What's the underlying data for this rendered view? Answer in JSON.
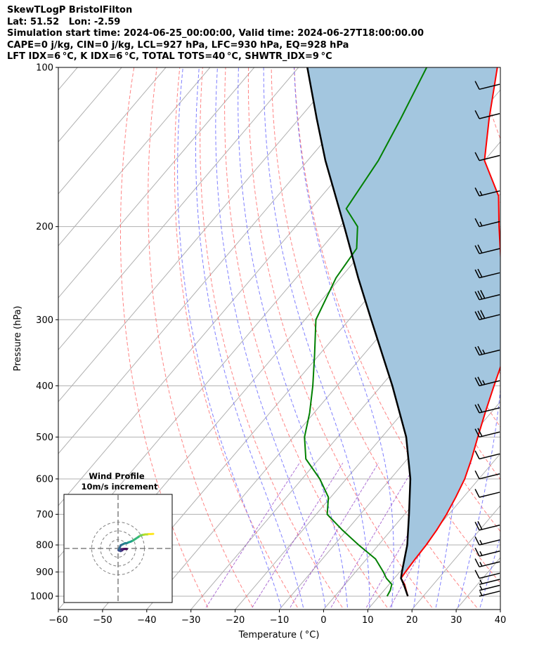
{
  "header": {
    "lines": [
      "SkewTLogP BristolFilton",
      "Lat: 51.52   Lon: -2.59",
      "Simulation start time: 2024-06-25_00:00:00, Valid time: 2024-06-27T18:00:00.00",
      "CAPE=0 j/kg, CIN=0 j/kg, LCL=927 hPa, LFC=930 hPa, EQ=928 hPa",
      "LFT IDX=6 °C, K IDX=6 °C, TOTAL TOTS=40 °C, SHWTR_IDX=9 °C"
    ]
  },
  "chart_data": {
    "type": "skewt",
    "xlabel": "Temperature ( °C)",
    "ylabel": "Pressure (hPa)",
    "xlim": [
      -60,
      40
    ],
    "ylim": [
      1040,
      100
    ],
    "y_log_scale": true,
    "x_ticks": [
      -60,
      -50,
      -40,
      -30,
      -20,
      -10,
      0,
      10,
      20,
      30,
      40
    ],
    "x_tick_labels": [
      "−60",
      "−50",
      "−40",
      "−30",
      "−20",
      "−10",
      "0",
      "10",
      "20",
      "30",
      "40"
    ],
    "y_ticks": [
      1000,
      900,
      800,
      700,
      600,
      500,
      400,
      300,
      200,
      100
    ],
    "y_tick_labels": [
      "1000",
      "900",
      "800",
      "700",
      "600",
      "500",
      "400",
      "300",
      "200",
      "100"
    ],
    "grid": true,
    "colors": {
      "temperature": "#ff0000",
      "dewpoint": "#008000",
      "parcel": "#000000",
      "cape_fill": "#a3c6df",
      "dry_adiabats": "#ff6f6f",
      "moist_adiabats": "#6a6aff",
      "mixing_ratio": "#9a4fc9",
      "isotherms": "#b0b0b0"
    },
    "series": [
      {
        "points": [
          [
            1000,
            16.5
          ],
          [
            950,
            13.5
          ],
          [
            925,
            11.5
          ],
          [
            900,
            11.3
          ],
          [
            850,
            11.0
          ],
          [
            800,
            10.8
          ],
          [
            750,
            10.3
          ],
          [
            700,
            9.5
          ],
          [
            650,
            8.3
          ],
          [
            600,
            6.8
          ],
          [
            550,
            4.5
          ],
          [
            500,
            1.7
          ],
          [
            450,
            -1.3
          ],
          [
            400,
            -4.5
          ],
          [
            350,
            -8.0
          ],
          [
            300,
            -14.0
          ],
          [
            250,
            -23.5
          ],
          [
            200,
            -34.0
          ],
          [
            175,
            -40.0
          ],
          [
            150,
            -50.0
          ],
          [
            125,
            -57.0
          ],
          [
            100,
            -65.0
          ]
        ]
      },
      {
        "points": [
          [
            1000,
            11.8
          ],
          [
            975,
            11.4
          ],
          [
            950,
            10.6
          ],
          [
            925,
            8.2
          ],
          [
            900,
            6.3
          ],
          [
            850,
            2.0
          ],
          [
            800,
            -4.5
          ],
          [
            750,
            -11.0
          ],
          [
            700,
            -17.5
          ],
          [
            650,
            -20.5
          ],
          [
            600,
            -26.0
          ],
          [
            550,
            -33.0
          ],
          [
            500,
            -37.5
          ],
          [
            450,
            -41.0
          ],
          [
            400,
            -45.5
          ],
          [
            350,
            -51.0
          ],
          [
            300,
            -57.5
          ],
          [
            250,
            -61.0
          ],
          [
            220,
            -62.0
          ],
          [
            200,
            -66.0
          ],
          [
            185,
            -72.0
          ],
          [
            150,
            -74.0
          ],
          [
            125,
            -77.0
          ],
          [
            100,
            -81.0
          ]
        ]
      },
      {
        "points": [
          [
            1000,
            16.5
          ],
          [
            950,
            13.3
          ],
          [
            925,
            11.5
          ],
          [
            900,
            10.5
          ],
          [
            800,
            6.5
          ],
          [
            700,
            1.0
          ],
          [
            600,
            -5.5
          ],
          [
            500,
            -14.5
          ],
          [
            400,
            -27.5
          ],
          [
            300,
            -45.0
          ],
          [
            250,
            -56.0
          ],
          [
            200,
            -69.0
          ],
          [
            150,
            -86.0
          ],
          [
            125,
            -96.0
          ],
          [
            100,
            -108.0
          ]
        ]
      }
    ],
    "wind_barbs": [
      {
        "p": 1000,
        "knots": 5
      },
      {
        "p": 975,
        "knots": 5
      },
      {
        "p": 950,
        "knots": 5
      },
      {
        "p": 925,
        "knots": 10
      },
      {
        "p": 880,
        "knots": 15
      },
      {
        "p": 840,
        "knots": 15
      },
      {
        "p": 800,
        "knots": 15
      },
      {
        "p": 750,
        "knots": 20
      },
      {
        "p": 650,
        "knots": 10
      },
      {
        "p": 600,
        "knots": 10
      },
      {
        "p": 550,
        "knots": 10
      },
      {
        "p": 500,
        "knots": 20
      },
      {
        "p": 450,
        "knots": 20
      },
      {
        "p": 400,
        "knots": 25
      },
      {
        "p": 350,
        "knots": 25
      },
      {
        "p": 300,
        "knots": 30
      },
      {
        "p": 275,
        "knots": 30
      },
      {
        "p": 250,
        "knots": 20
      },
      {
        "p": 225,
        "knots": 20
      },
      {
        "p": 200,
        "knots": 15
      },
      {
        "p": 175,
        "knots": 15
      },
      {
        "p": 150,
        "knots": 10
      },
      {
        "p": 125,
        "knots": 10
      },
      {
        "p": 110,
        "knots": 10
      }
    ],
    "hodograph": {
      "title": "Wind Profile",
      "subtitle": "10m/s increment",
      "ring_spacing_ms": 10,
      "points_uv": [
        [
          5.0,
          -0.3
        ],
        [
          4.0,
          -0.3
        ],
        [
          2.0,
          -0.4
        ],
        [
          1.0,
          -0.6
        ],
        [
          2.5,
          -1.0
        ],
        [
          1.5,
          -1.5
        ],
        [
          0.5,
          -1.2
        ],
        [
          0.2,
          -0.9
        ],
        [
          0.5,
          -0.5
        ],
        [
          1.5,
          1.8
        ],
        [
          3.0,
          2.5
        ],
        [
          4.0,
          3.0
        ],
        [
          5.0,
          3.0
        ],
        [
          6.0,
          3.5
        ],
        [
          7.0,
          3.8
        ],
        [
          8.5,
          4.5
        ],
        [
          10.0,
          5.5
        ],
        [
          11.5,
          6.5
        ],
        [
          12.5,
          7.2
        ],
        [
          13.5,
          7.6
        ],
        [
          14.5,
          7.8
        ],
        [
          15.5,
          8.0
        ],
        [
          16.5,
          8.0
        ],
        [
          17.5,
          8.2
        ],
        [
          18.5,
          8.2
        ],
        [
          20.0,
          8.3
        ]
      ]
    }
  }
}
